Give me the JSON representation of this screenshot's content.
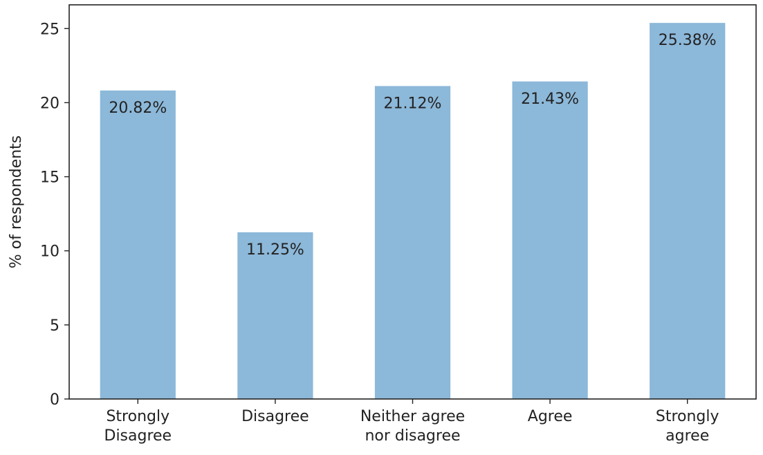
{
  "chart_data": {
    "type": "bar",
    "title": "",
    "xlabel": "",
    "ylabel": "% of respondents",
    "categories": [
      [
        "Strongly",
        "Disagree"
      ],
      [
        "Disagree"
      ],
      [
        "Neither agree",
        "nor disagree"
      ],
      [
        "Agree"
      ],
      [
        "Strongly",
        "agree"
      ]
    ],
    "values": [
      20.82,
      11.25,
      21.12,
      21.43,
      25.38
    ],
    "data_labels": [
      "20.82%",
      "11.25%",
      "21.12%",
      "21.43%",
      "25.38%"
    ],
    "ylim": [
      0,
      26.6
    ],
    "yticks": [
      0,
      5,
      10,
      15,
      20,
      25
    ],
    "ytick_labels": [
      "0",
      "5",
      "10",
      "15",
      "20",
      "25"
    ],
    "bar_color": "#8cb8d9",
    "grid": false,
    "legend": "none"
  }
}
